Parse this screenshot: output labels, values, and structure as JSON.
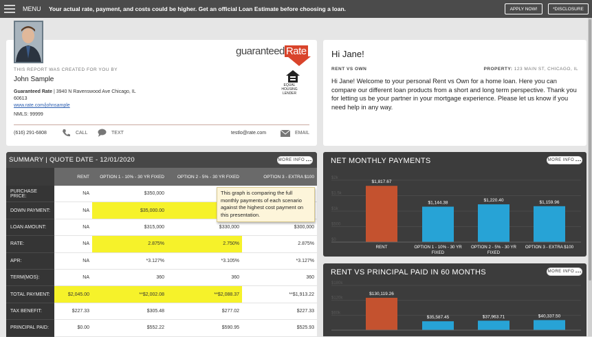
{
  "top_bar": {
    "menu": "MENU",
    "banner": "Your actual rate, payment, and costs could be higher. Get an official Loan Estimate before choosing a loan.",
    "apply": "APPLY NOW!",
    "disclosure": "*DISCLOSURE"
  },
  "agent": {
    "created_by": "THIS REPORT WAS CREATED FOR YOU BY",
    "name": "John Sample",
    "company": "Guaranteed Rate",
    "separator": "|",
    "address": "3940 N Ravenswood Ave Chicago, IL 60613",
    "website": "www.rate.com/johnsample",
    "nmls": "NMLS: 99999",
    "phone": "(616) 291-6808",
    "call": "CALL",
    "text": "TEXT",
    "email": "testlo@rate.com",
    "email_label": "EMAIL",
    "logo_main": "guaranteed",
    "logo_accent": "Rate",
    "ehl": "EQUAL HOUSING LENDER"
  },
  "greeting": {
    "title": "Hi Jane!",
    "section": "RENT VS OWN",
    "property_label": "PROPERTY:",
    "property": "123 MAIN ST, CHICAGO, IL",
    "message": "Hi Jane! Welcome to your personal Rent vs Own for a home loan. Here you can compare our different loan products from a short and long term perspective. Thank you for letting us be your partner in your mortgage experience. Please let us know if you need help in any way."
  },
  "summary": {
    "title": "SUMMARY | QUOTE DATE - 12/01/2020",
    "more_info": "MORE INFO",
    "columns": [
      "RENT",
      "OPTION 1 - 10% - 30 YR FIXED",
      "OPTION 2 - 5% - 30 YR FIXED",
      "OPTION 3 - EXTRA $100"
    ],
    "rows": [
      {
        "label": "PURCHASE PRICE:",
        "cells": [
          "NA",
          "$350,000",
          null,
          null
        ]
      },
      {
        "label": "DOWN PAYMENT:",
        "cells": [
          "NA",
          "$35,000.00",
          null,
          null
        ]
      },
      {
        "label": "LOAN AMOUNT:",
        "cells": [
          "NA",
          "$315,000",
          "$330,000",
          "$300,000"
        ]
      },
      {
        "label": "RATE:",
        "cells": [
          "NA",
          "2.875%",
          "2.750%",
          "2.875%"
        ]
      },
      {
        "label": "APR:",
        "cells": [
          "NA",
          "*3.127%",
          "*3.105%",
          "*3.127%"
        ]
      },
      {
        "label": "TERM(MOS):",
        "cells": [
          "NA",
          "360",
          "360",
          "360"
        ]
      },
      {
        "label": "TOTAL PAYMENT:",
        "cells": [
          "$2,045.00",
          "**$2,002.08",
          "**$2,088.37",
          "**$1,913.22"
        ]
      },
      {
        "label": "TAX BENEFIT:",
        "cells": [
          "$227.33",
          "$305.48",
          "$277.02",
          "$227.33"
        ]
      },
      {
        "label": "PRINCIPAL PAID:",
        "cells": [
          "$0.00",
          "$552.22",
          "$590.95",
          "$525.93"
        ]
      }
    ],
    "tooltip": "This graph is comparing the full monthly payments of each scenario against the highest cost payment on this presentation."
  },
  "chart_data": [
    {
      "type": "bar",
      "title": "NET MONTHLY PAYMENTS",
      "button": "MORE INFO",
      "categories": [
        "RENT",
        "OPTION 1 - 10% - 30 YR FIXED",
        "OPTION 2 - 5% - 30 YR FIXED",
        "OPTION 3 - EXTRA $100"
      ],
      "values": [
        1817.67,
        1144.38,
        1220.4,
        1159.96
      ],
      "value_labels": [
        "$1,817.67",
        "$1,144.38",
        "$1,220.40",
        "$1,159.96"
      ],
      "colors": [
        "#c4522f",
        "#27a3d6",
        "#27a3d6",
        "#27a3d6"
      ],
      "ylim": [
        0,
        2000
      ],
      "yticks": [
        {
          "value": 0,
          "label": "$0"
        },
        {
          "value": 500,
          "label": "$500"
        },
        {
          "value": 1000,
          "label": "$1k"
        },
        {
          "value": 1500,
          "label": "$1.5k"
        },
        {
          "value": 2000,
          "label": "$2k"
        }
      ]
    },
    {
      "type": "bar",
      "title": "RENT VS PRINCIPAL PAID IN 60 MONTHS",
      "button": "MORE INFO",
      "values": [
        130119.26,
        35587.45,
        37963.71,
        40337.5
      ],
      "value_labels": [
        "$130,119.26",
        "$35,587.45",
        "$37,963.71",
        "$40,337.50"
      ],
      "colors": [
        "#c4522f",
        "#27a3d6",
        "#27a3d6",
        "#27a3d6"
      ],
      "ylim": [
        0,
        180000
      ],
      "yticks": [
        {
          "value": 60000,
          "label": "$60k"
        },
        {
          "value": 120000,
          "label": "$120k"
        },
        {
          "value": 180000,
          "label": "$180k"
        }
      ]
    }
  ]
}
